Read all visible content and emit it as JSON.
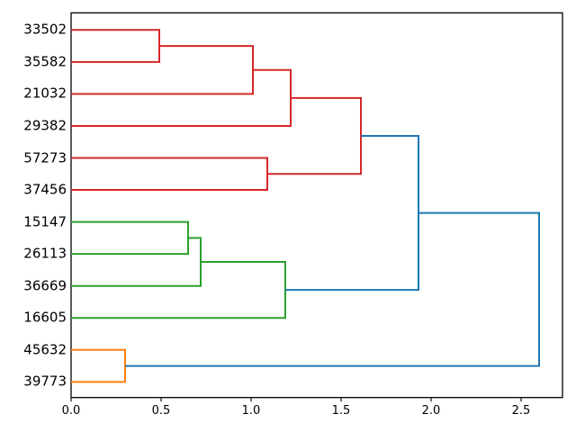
{
  "figure": {
    "background": "#ffffff"
  },
  "chart_data": {
    "type": "dendrogram",
    "orientation": "horizontal-leaves-left",
    "title": "",
    "xlabel": "",
    "ylabel": "",
    "grid": false,
    "xlim": [
      0,
      2.73
    ],
    "leaves": [
      "33502",
      "35582",
      "21032",
      "29382",
      "57273",
      "37456",
      "15147",
      "26113",
      "36669",
      "16605",
      "45632",
      "39773"
    ],
    "links": [
      {
        "id": "A",
        "a": "L0",
        "b": "L1",
        "distance": 0.49,
        "color": "red"
      },
      {
        "id": "B",
        "a": "A",
        "b": "L2",
        "distance": 1.01,
        "color": "red"
      },
      {
        "id": "C",
        "a": "B",
        "b": "L3",
        "distance": 1.22,
        "color": "red"
      },
      {
        "id": "D",
        "a": "L4",
        "b": "L5",
        "distance": 1.09,
        "color": "red"
      },
      {
        "id": "E",
        "a": "C",
        "b": "D",
        "distance": 1.61,
        "color": "red"
      },
      {
        "id": "F",
        "a": "L6",
        "b": "L7",
        "distance": 0.65,
        "color": "green"
      },
      {
        "id": "G",
        "a": "F",
        "b": "L8",
        "distance": 0.72,
        "color": "green"
      },
      {
        "id": "H",
        "a": "G",
        "b": "L9",
        "distance": 1.19,
        "color": "green"
      },
      {
        "id": "I",
        "a": "L10",
        "b": "L11",
        "distance": 0.3,
        "color": "orange"
      },
      {
        "id": "J",
        "a": "E",
        "b": "H",
        "distance": 1.93,
        "color": "blue"
      },
      {
        "id": "K",
        "a": "J",
        "b": "I",
        "distance": 2.6,
        "color": "blue"
      }
    ],
    "x_ticks": [
      0.0,
      0.5,
      1.0,
      1.5,
      2.0,
      2.5
    ],
    "x_tick_labels": [
      "0.0",
      "0.5",
      "1.0",
      "1.5",
      "2.0",
      "2.5"
    ],
    "colors": {
      "red": "#d62728",
      "green": "#2ca02c",
      "orange": "#ff7f0e",
      "blue": "#1f77b4"
    },
    "axis_color": "#000000"
  }
}
